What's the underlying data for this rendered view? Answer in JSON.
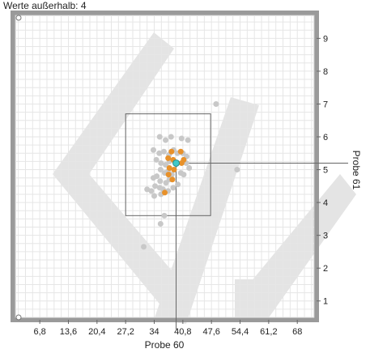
{
  "status": {
    "outside_label": "Werte außerhalb: 4"
  },
  "chart_data": {
    "type": "scatter",
    "xlabel": "Probe 60",
    "ylabel": "Probe 61",
    "xlim": [
      1.0,
      72.0
    ],
    "ylim": [
      0.5,
      9.7
    ],
    "x_ticks": [
      "6,8",
      "13,6",
      "20,4",
      "27,2",
      "34",
      "40,8",
      "47,6",
      "54,4",
      "61,2",
      "68"
    ],
    "y_ticks": [
      "1",
      "2",
      "3",
      "4",
      "5",
      "6",
      "7",
      "8",
      "9"
    ],
    "grid": true,
    "selection_box": {
      "x": [
        27.2,
        47.4
      ],
      "y": [
        3.6,
        6.7
      ]
    },
    "crosshair": {
      "x": 39.2,
      "y": 5.2
    },
    "series": [
      {
        "role": "background",
        "color": "#c8c8c8",
        "points": [
          [
            35.3,
            6.0
          ],
          [
            36.7,
            5.9
          ],
          [
            38.0,
            6.0
          ],
          [
            40.5,
            5.95
          ],
          [
            42.0,
            5.9
          ],
          [
            33.8,
            5.6
          ],
          [
            35.2,
            5.5
          ],
          [
            36.3,
            5.55
          ],
          [
            37.5,
            5.45
          ],
          [
            38.6,
            5.6
          ],
          [
            39.5,
            5.5
          ],
          [
            40.8,
            5.5
          ],
          [
            41.7,
            5.4
          ],
          [
            34.5,
            5.3
          ],
          [
            35.6,
            5.2
          ],
          [
            36.7,
            5.15
          ],
          [
            37.6,
            5.25
          ],
          [
            41.6,
            5.2
          ],
          [
            42.3,
            5.05
          ],
          [
            35.5,
            5.0
          ],
          [
            36.5,
            4.9
          ],
          [
            37.3,
            4.95
          ],
          [
            38.2,
            4.85
          ],
          [
            40.3,
            4.9
          ],
          [
            41.0,
            4.85
          ],
          [
            33.8,
            4.75
          ],
          [
            34.6,
            4.8
          ],
          [
            35.4,
            4.65
          ],
          [
            36.8,
            4.6
          ],
          [
            37.6,
            4.7
          ],
          [
            39.6,
            4.55
          ],
          [
            34.2,
            4.5
          ],
          [
            35.3,
            4.45
          ],
          [
            36.1,
            4.4
          ],
          [
            37.3,
            4.35
          ],
          [
            38.5,
            4.45
          ],
          [
            32.3,
            4.4
          ],
          [
            33.3,
            4.35
          ],
          [
            34.0,
            4.2
          ],
          [
            35.6,
            4.25
          ],
          [
            36.4,
            3.6
          ],
          [
            35.5,
            3.35
          ],
          [
            31.5,
            2.65
          ],
          [
            48.7,
            7.0
          ],
          [
            53.7,
            5.0
          ]
        ]
      },
      {
        "role": "highlighted",
        "color": "#e8912a",
        "points": [
          [
            38.1,
            5.55
          ],
          [
            40.3,
            5.55
          ],
          [
            37.3,
            5.35
          ],
          [
            38.5,
            5.3
          ],
          [
            41.0,
            5.3
          ],
          [
            39.3,
            5.2
          ],
          [
            40.5,
            5.2
          ],
          [
            37.6,
            5.05
          ],
          [
            38.7,
            5.0
          ],
          [
            37.4,
            4.85
          ],
          [
            38.3,
            4.7
          ],
          [
            36.5,
            4.3
          ]
        ]
      },
      {
        "role": "selected",
        "color": "#40c8c8",
        "points": [
          [
            39.2,
            5.2
          ]
        ]
      }
    ]
  }
}
